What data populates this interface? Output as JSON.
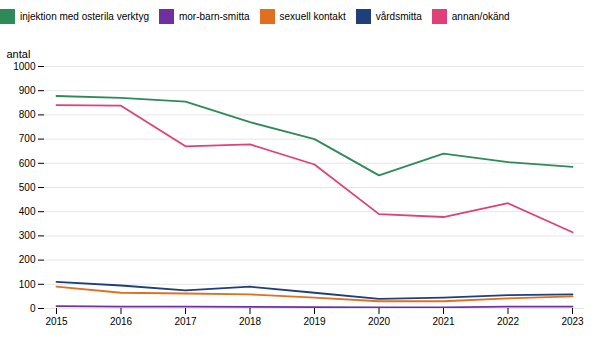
{
  "chart_data": {
    "type": "line",
    "x": [
      2015,
      2016,
      2017,
      2018,
      2019,
      2020,
      2021,
      2022,
      2023
    ],
    "series": [
      {
        "name": "injektion med osterila verktyg",
        "color": "#2e8b57",
        "values": [
          878,
          870,
          855,
          770,
          700,
          550,
          640,
          605,
          585
        ]
      },
      {
        "name": "mor-barn-smitta",
        "color": "#7030a0",
        "values": [
          10,
          8,
          8,
          7,
          6,
          5,
          5,
          8,
          8
        ]
      },
      {
        "name": "sexuell kontakt",
        "color": "#e07020",
        "values": [
          90,
          65,
          62,
          58,
          45,
          30,
          30,
          42,
          50
        ]
      },
      {
        "name": "vårdsmitta",
        "color": "#1f3f7a",
        "values": [
          110,
          95,
          75,
          90,
          65,
          40,
          45,
          55,
          58
        ]
      },
      {
        "name": "annan/okänd",
        "color": "#e0407a",
        "values": [
          840,
          838,
          670,
          678,
          595,
          390,
          378,
          435,
          315
        ]
      }
    ],
    "ylabel": "antal",
    "xlim": [
      2015,
      2023
    ],
    "xticks": [
      2015,
      2016,
      2017,
      2018,
      2019,
      2020,
      2021,
      2022,
      2023
    ],
    "ylim": [
      0,
      1000
    ],
    "yticks": [
      0,
      100,
      200,
      300,
      400,
      500,
      600,
      700,
      800,
      900,
      1000
    ],
    "grid": true,
    "legend": "top"
  }
}
